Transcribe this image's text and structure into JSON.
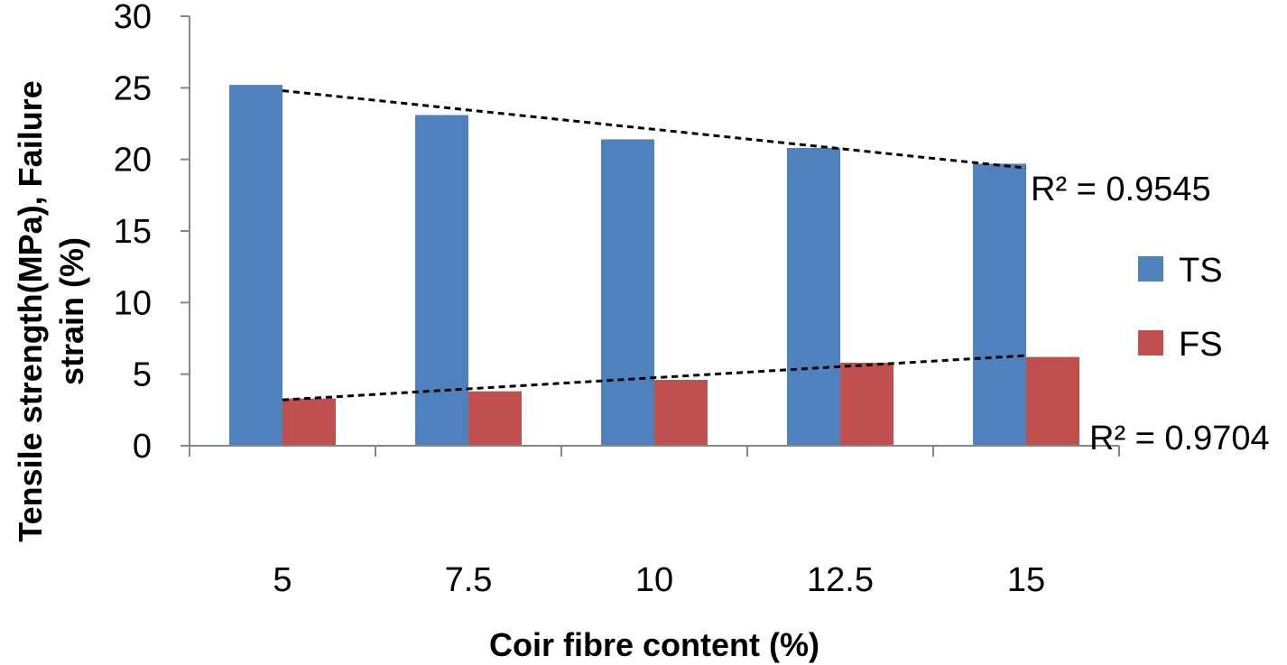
{
  "chart_data": {
    "type": "bar",
    "categories": [
      "5",
      "7.5",
      "10",
      "12.5",
      "15"
    ],
    "series": [
      {
        "name": "TS",
        "color": "#4F81BD",
        "values": [
          25.2,
          23.1,
          21.4,
          20.8,
          19.7
        ]
      },
      {
        "name": "FS",
        "color": "#C0504D",
        "values": [
          3.3,
          3.8,
          4.6,
          5.8,
          6.2
        ]
      }
    ],
    "trendlines": [
      {
        "series": "TS",
        "type": "linear",
        "label": "R² = 0.9545",
        "start": 24.8,
        "end": 19.4
      },
      {
        "series": "FS",
        "type": "linear",
        "label": "R² = 0.9704",
        "start": 3.2,
        "end": 6.3
      }
    ],
    "xlabel": "Coir fibre content (%)",
    "ylabel_lines": [
      "Tensile strength(MPa), Failure",
      "strain (%)"
    ],
    "ylim": [
      0,
      30
    ],
    "yticks": [
      "0",
      "5",
      "10",
      "15",
      "20",
      "25",
      "30"
    ],
    "grid": false,
    "legend_position": "right"
  }
}
